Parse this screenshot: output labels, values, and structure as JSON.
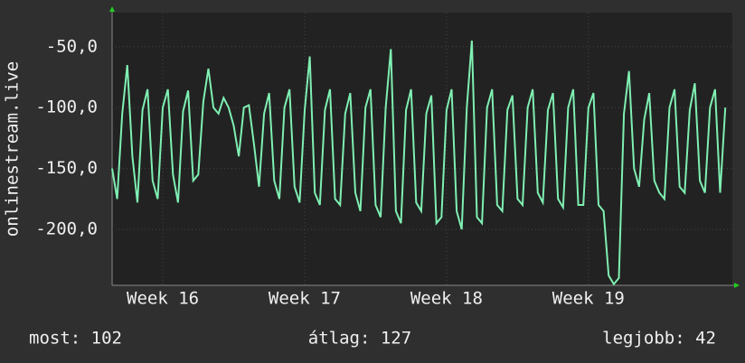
{
  "chart_data": {
    "type": "line",
    "ylabel": "onlinestream.live",
    "x": [
      0,
      0.25,
      0.5,
      0.75,
      1,
      1.25,
      1.5,
      1.75,
      2,
      2.25,
      2.5,
      2.75,
      3,
      3.25,
      3.5,
      3.75,
      4,
      4.25,
      4.5,
      4.75,
      5,
      5.25,
      5.5,
      5.75,
      6,
      6.25,
      6.5,
      6.75,
      7,
      7.25,
      7.5,
      7.75,
      8,
      8.25,
      8.5,
      8.75,
      9,
      9.25,
      9.5,
      9.75,
      10,
      10.25,
      10.5,
      10.75,
      11,
      11.25,
      11.5,
      11.75,
      12,
      12.25,
      12.5,
      12.75,
      13,
      13.25,
      13.5,
      13.75,
      14,
      14.25,
      14.5,
      14.75,
      15,
      15.25,
      15.5,
      15.75,
      16,
      16.25,
      16.5,
      16.75,
      17,
      17.25,
      17.5,
      17.75,
      18,
      18.25,
      18.5,
      18.75,
      19,
      19.25,
      19.5,
      19.75,
      20,
      20.25,
      20.5,
      20.75,
      21,
      21.25,
      21.5,
      21.75,
      22,
      22.25,
      22.5,
      22.75,
      23,
      23.25,
      23.5,
      23.75,
      24,
      24.25,
      24.5,
      24.75,
      25,
      25.25,
      25.5,
      25.75,
      26,
      26.25,
      26.5,
      26.75,
      27,
      27.25,
      27.5,
      27.75,
      28,
      28.25,
      28.5,
      28.75,
      29,
      29.25,
      29.5,
      29.75,
      30,
      30.25
    ],
    "series": [
      {
        "name": "onlinestream.live",
        "color": "#7fefb2",
        "values": [
          -150,
          -175,
          -105,
          -65,
          -140,
          -178,
          -102,
          -85,
          -160,
          -175,
          -100,
          -85,
          -155,
          -178,
          -103,
          -86,
          -160,
          -155,
          -95,
          -68,
          -100,
          -105,
          -92,
          -100,
          -115,
          -140,
          -100,
          -98,
          -130,
          -165,
          -105,
          -88,
          -160,
          -175,
          -100,
          -85,
          -165,
          -178,
          -102,
          -58,
          -170,
          -180,
          -102,
          -85,
          -175,
          -180,
          -105,
          -88,
          -170,
          -185,
          -100,
          -85,
          -180,
          -190,
          -100,
          -52,
          -185,
          -195,
          -102,
          -85,
          -178,
          -185,
          -105,
          -90,
          -195,
          -190,
          -102,
          -85,
          -185,
          -200,
          -100,
          -45,
          -190,
          -195,
          -100,
          -85,
          -180,
          -185,
          -102,
          -90,
          -175,
          -180,
          -100,
          -85,
          -170,
          -178,
          -102,
          -88,
          -175,
          -182,
          -100,
          -85,
          -180,
          -180,
          -100,
          -88,
          -180,
          -185,
          -238,
          -245,
          -240,
          -105,
          -70,
          -150,
          -165,
          -110,
          -88,
          -160,
          -170,
          -175,
          -100,
          -85,
          -165,
          -170,
          -102,
          -80,
          -160,
          -170,
          -100,
          -85,
          -170,
          -100
        ]
      }
    ],
    "xlim": [
      0,
      30.6
    ],
    "xticks": [
      {
        "value": 2.5,
        "label": "Week 16"
      },
      {
        "value": 9.5,
        "label": "Week 17"
      },
      {
        "value": 16.5,
        "label": "Week 18"
      },
      {
        "value": 23.5,
        "label": "Week 19"
      }
    ],
    "ylim": [
      -246,
      -22
    ],
    "yticks": [
      {
        "value": -200,
        "label": "-200,0"
      },
      {
        "value": -150,
        "label": "-150,0"
      },
      {
        "value": -100,
        "label": "-100,0"
      },
      {
        "value": -50,
        "label": "-50,0"
      }
    ],
    "grid": true,
    "footer": [
      "most: 102",
      "átlag: 127",
      "legjobb: 42"
    ]
  }
}
